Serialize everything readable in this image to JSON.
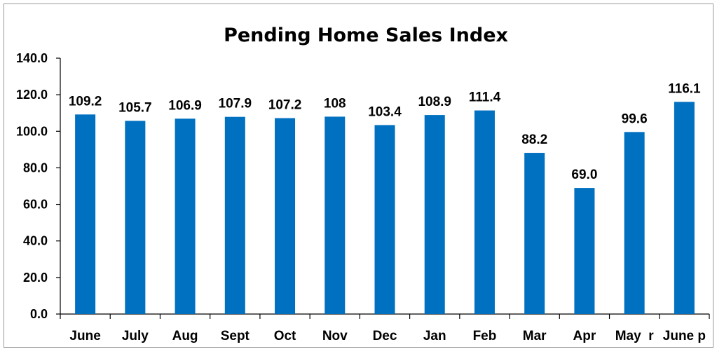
{
  "chart_data": {
    "type": "bar",
    "title": "Pending Home Sales Index",
    "categories": [
      "June",
      "July",
      "Aug",
      "Sept",
      "Oct",
      "Nov",
      "Dec",
      "Jan",
      "Feb",
      "Mar",
      "Apr",
      "May  r",
      "June p"
    ],
    "values": [
      109.2,
      105.7,
      106.9,
      107.9,
      107.2,
      108,
      103.4,
      108.9,
      111.4,
      88.2,
      69.0,
      99.6,
      116.1
    ],
    "value_labels": [
      "109.2",
      "105.7",
      "106.9",
      "107.9",
      "107.2",
      "108",
      "103.4",
      "108.9",
      "111.4",
      "88.2",
      "69.0",
      "99.6",
      "116.1"
    ],
    "ylim": [
      0,
      140
    ],
    "yticks": [
      "0.0",
      "20.0",
      "40.0",
      "60.0",
      "80.0",
      "100.0",
      "120.0",
      "140.0"
    ],
    "xlabel": "",
    "ylabel": "",
    "grid": false,
    "bar_color": "#0070C0"
  }
}
